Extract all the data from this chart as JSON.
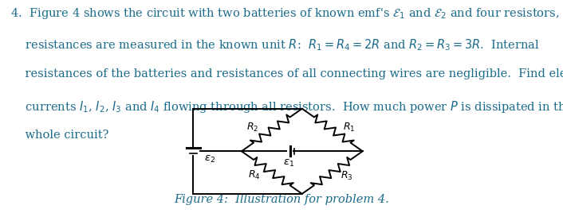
{
  "text_color": "#1a6b8a",
  "circuit_color": "#000000",
  "fig_caption_color": "#1a6b8a",
  "background_color": "#ffffff",
  "font_size_main": 10.5,
  "font_size_caption": 10.5,
  "fig_caption": "Figure 4:  Illustration for problem 4."
}
